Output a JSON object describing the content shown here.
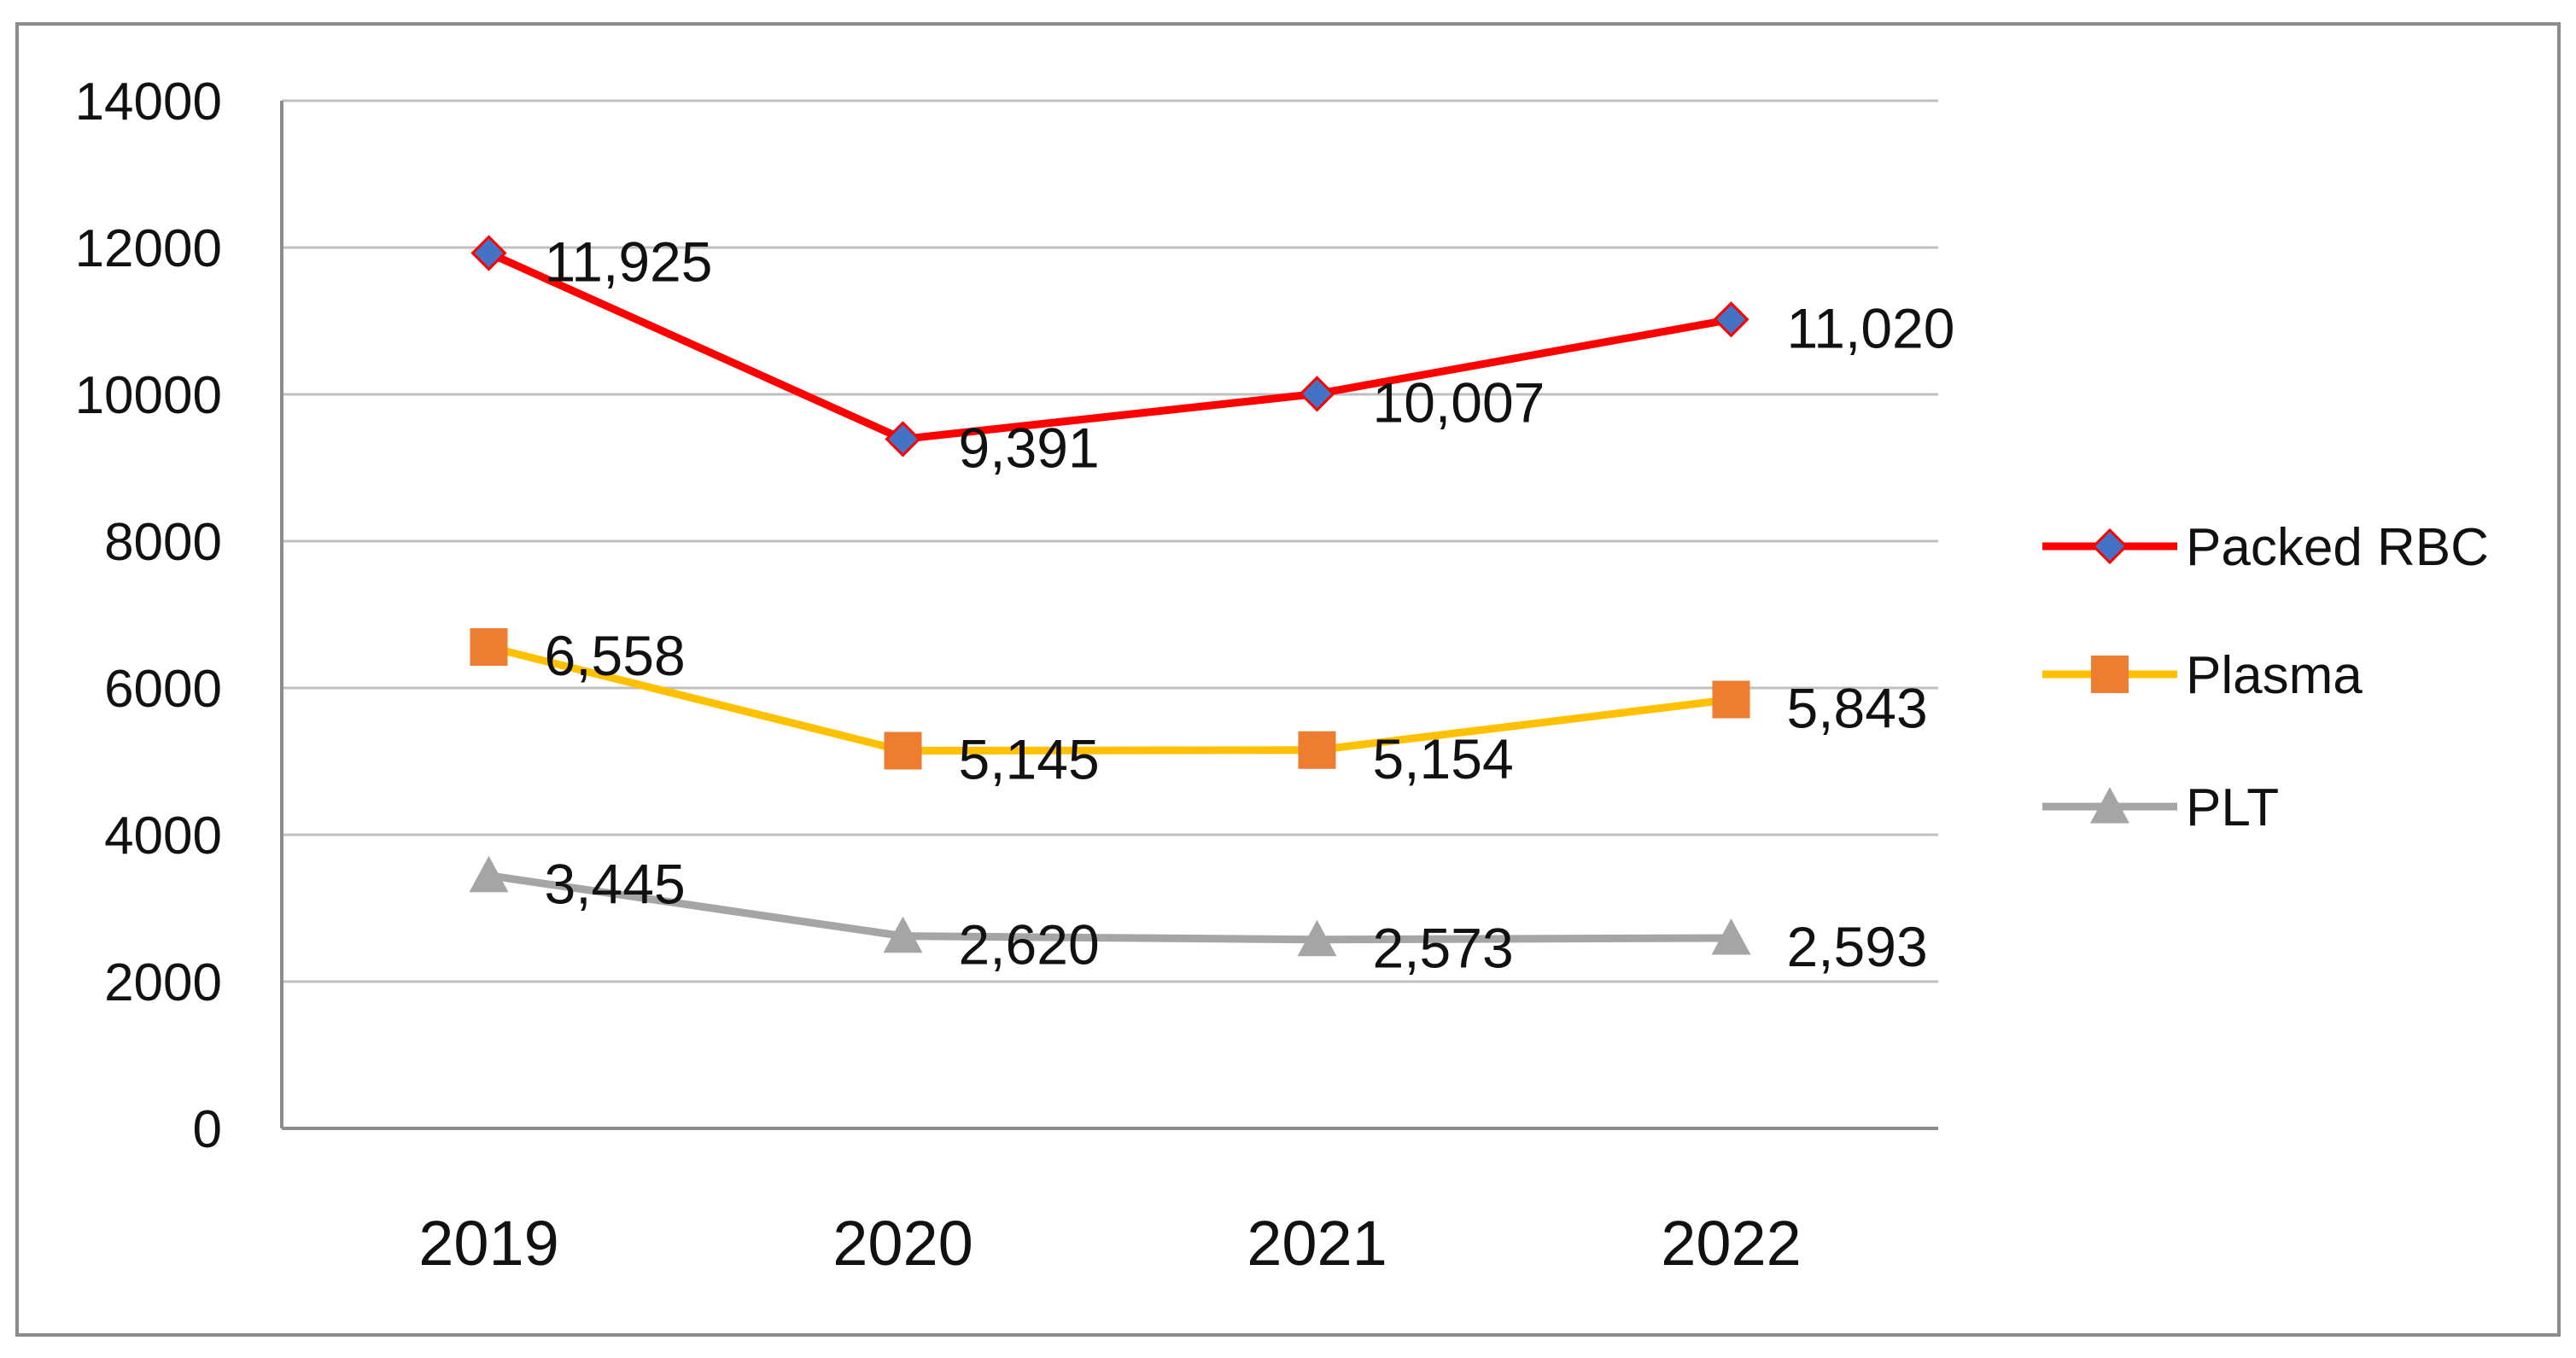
{
  "chart_data": {
    "type": "line",
    "title": "",
    "xlabel": "",
    "ylabel": "",
    "categories": [
      "2019",
      "2020",
      "2021",
      "2022"
    ],
    "ylim": [
      0,
      14000
    ],
    "yticks": [
      0,
      2000,
      4000,
      6000,
      8000,
      10000,
      12000,
      14000
    ],
    "grid": true,
    "legend_position": "right",
    "series": [
      {
        "name": "Packed RBC",
        "values": [
          11925,
          9391,
          10007,
          11020
        ],
        "labels": [
          "11,925",
          "9,391",
          "10,007",
          "11,020"
        ],
        "color": "#ff0000",
        "marker": "diamond",
        "marker_color": "#4472c4"
      },
      {
        "name": "Plasma",
        "values": [
          6558,
          5145,
          5154,
          5843
        ],
        "labels": [
          "6,558",
          "5,145",
          "5,154",
          "5,843"
        ],
        "color": "#ffc000",
        "marker": "square",
        "marker_color": "#ed7d31"
      },
      {
        "name": "PLT",
        "values": [
          3445,
          2620,
          2573,
          2593
        ],
        "labels": [
          "3,445",
          "2,620",
          "2,573",
          "2,593"
        ],
        "color": "#a5a5a5",
        "marker": "triangle",
        "marker_color": "#a5a5a5"
      }
    ]
  }
}
